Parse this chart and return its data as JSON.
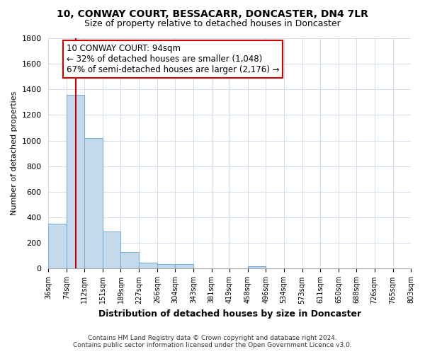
{
  "title1": "10, CONWAY COURT, BESSACARR, DONCASTER, DN4 7LR",
  "title2": "Size of property relative to detached houses in Doncaster",
  "xlabel": "Distribution of detached houses by size in Doncaster",
  "ylabel": "Number of detached properties",
  "bin_edges": [
    36,
    74,
    112,
    151,
    189,
    227,
    266,
    304,
    343,
    381,
    419,
    458,
    496,
    534,
    573,
    611,
    650,
    688,
    726,
    765,
    803
  ],
  "bar_heights": [
    350,
    1360,
    1020,
    290,
    130,
    45,
    35,
    35,
    0,
    0,
    0,
    18,
    0,
    0,
    0,
    0,
    0,
    0,
    0,
    0
  ],
  "bar_color": "#c5d9ed",
  "bar_edge_color": "#7aafd4",
  "property_sqm": 94,
  "vline_color": "#cc0000",
  "annotation_text": "10 CONWAY COURT: 94sqm\n← 32% of detached houses are smaller (1,048)\n67% of semi-detached houses are larger (2,176) →",
  "annotation_box_color": "#ffffff",
  "annotation_box_edge": "#cc0000",
  "ylim": [
    0,
    1800
  ],
  "yticks": [
    0,
    200,
    400,
    600,
    800,
    1000,
    1200,
    1400,
    1600,
    1800
  ],
  "footer1": "Contains HM Land Registry data © Crown copyright and database right 2024.",
  "footer2": "Contains public sector information licensed under the Open Government Licence v3.0.",
  "bg_color": "#ffffff",
  "plot_bg_color": "#ffffff",
  "grid_color": "#d0dce8"
}
